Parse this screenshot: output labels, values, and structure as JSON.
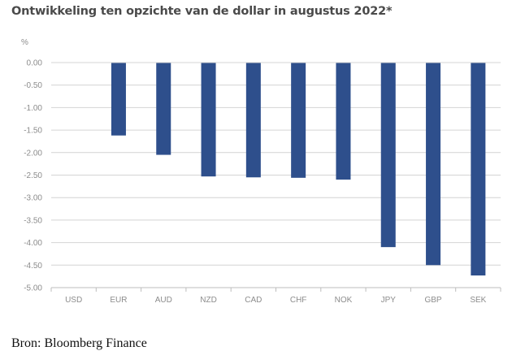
{
  "title": "Ontwikkeling ten opzichte van de dollar in augustus 2022*",
  "source": "Bron: Bloomberg Finance",
  "chart_data": {
    "type": "bar",
    "title": "Ontwikkeling ten opzichte van de dollar in augustus 2022*",
    "ylabel": "%",
    "xlabel": "",
    "categories": [
      "USD",
      "EUR",
      "AUD",
      "NZD",
      "CAD",
      "CHF",
      "NOK",
      "JPY",
      "GBP",
      "SEK"
    ],
    "values": [
      0,
      -1.62,
      -2.05,
      -2.53,
      -2.55,
      -2.56,
      -2.6,
      -4.1,
      -4.5,
      -4.73
    ],
    "ylim": [
      -5.0,
      0.0
    ],
    "yticks": [
      0,
      -0.5,
      -1.0,
      -1.5,
      -2.0,
      -2.5,
      -3.0,
      -3.5,
      -4.0,
      -4.5,
      -5.0
    ],
    "ytick_labels": [
      "0.00",
      "-0.50",
      "-1.00",
      "-1.50",
      "-2.00",
      "-2.50",
      "-3.00",
      "-3.50",
      "-4.00",
      "-4.50",
      "-5.00"
    ],
    "grid": true,
    "legend": "none",
    "bar_color": "#2e4f8c",
    "grid_color": "#d4d4d4",
    "text_color": "#8c8c8c"
  }
}
